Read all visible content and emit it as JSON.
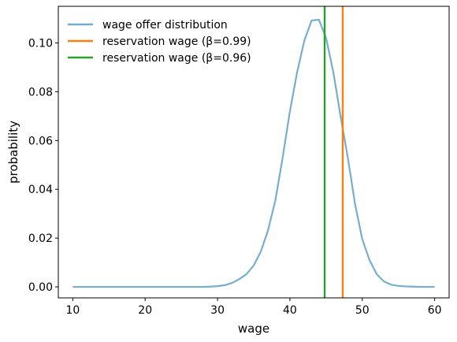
{
  "chart_data": {
    "type": "line",
    "xlabel": "wage",
    "ylabel": "probability",
    "xlim": [
      8,
      62
    ],
    "ylim": [
      -0.0045,
      0.115
    ],
    "grid": false,
    "legend_position": "top-left",
    "x_ticks": [
      10,
      20,
      30,
      40,
      50,
      60
    ],
    "y_ticks": [
      0.0,
      0.02,
      0.04,
      0.06,
      0.08,
      0.1
    ],
    "x_tick_labels": [
      "10",
      "20",
      "30",
      "40",
      "50",
      "60"
    ],
    "y_tick_labels": [
      "0.00",
      "0.02",
      "0.04",
      "0.06",
      "0.08",
      "0.10"
    ],
    "series": [
      {
        "name": "wage offer distribution",
        "color": "#76aed1",
        "x": [
          10,
          11,
          12,
          13,
          14,
          15,
          16,
          17,
          18,
          19,
          20,
          21,
          22,
          23,
          24,
          25,
          26,
          27,
          28,
          29,
          30,
          31,
          32,
          33,
          34,
          35,
          36,
          37,
          38,
          39,
          40,
          41,
          42,
          43,
          44,
          45,
          46,
          47,
          48,
          49,
          50,
          51,
          52,
          53,
          54,
          55,
          56,
          57,
          58,
          59,
          60
        ],
        "y": [
          0,
          0,
          0,
          0,
          0,
          0,
          0,
          0,
          0,
          0,
          0,
          0,
          0,
          0,
          0,
          0,
          0,
          0,
          0,
          0.0001,
          0.0003,
          0.0007,
          0.0016,
          0.0032,
          0.0052,
          0.0088,
          0.0146,
          0.0234,
          0.0356,
          0.053,
          0.072,
          0.088,
          0.101,
          0.1092,
          0.1095,
          0.102,
          0.088,
          0.07,
          0.053,
          0.034,
          0.0195,
          0.011,
          0.0052,
          0.0022,
          0.0009,
          0.0004,
          0.0002,
          0.0001,
          0,
          0,
          0
        ]
      }
    ],
    "vlines": [
      {
        "name": "reservation wage (β=0.99)",
        "x": 47.3,
        "color": "#ff7f0e"
      },
      {
        "name": "reservation wage (β=0.96)",
        "x": 44.8,
        "color": "#2ca02c"
      }
    ]
  }
}
